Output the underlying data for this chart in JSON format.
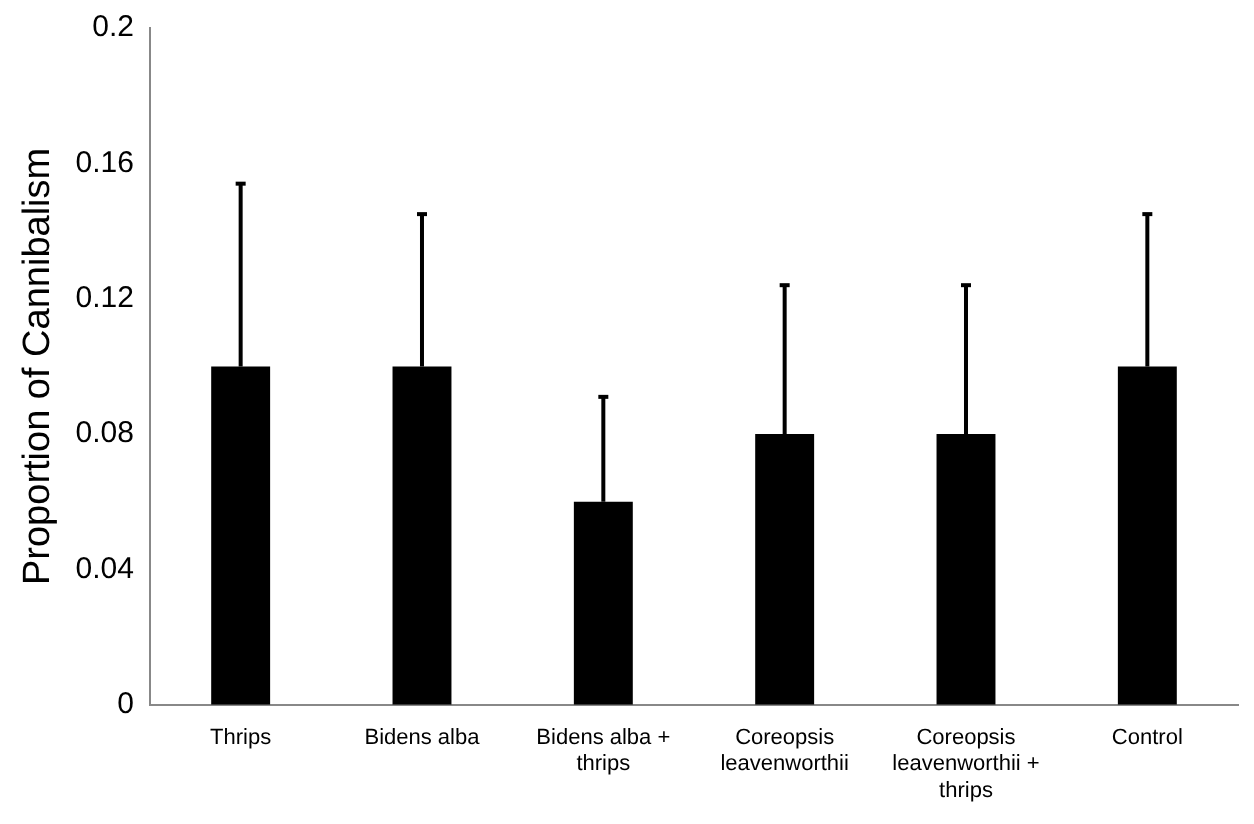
{
  "chart_data": {
    "type": "bar",
    "ylabel": "Proportion of Cannibalism",
    "categories": [
      "Thrips",
      "Bidens alba",
      "Bidens alba + thrips",
      "Coreopsis leavenworthii",
      "Coreopsis leavenworthii + thrips",
      "Control"
    ],
    "values": [
      0.1,
      0.1,
      0.06,
      0.08,
      0.08,
      0.1
    ],
    "errors": [
      [
        0.1,
        0.154
      ],
      [
        0.1,
        0.145
      ],
      [
        0.06,
        0.091
      ],
      [
        0.08,
        0.124
      ],
      [
        0.08,
        0.124
      ],
      [
        0.1,
        0.145
      ]
    ],
    "color": "#000000",
    "ylim": [
      0,
      0.2
    ],
    "yticks": [
      0,
      0.04,
      0.08,
      0.12,
      0.16,
      0.2
    ],
    "grid": false,
    "legend": false
  }
}
